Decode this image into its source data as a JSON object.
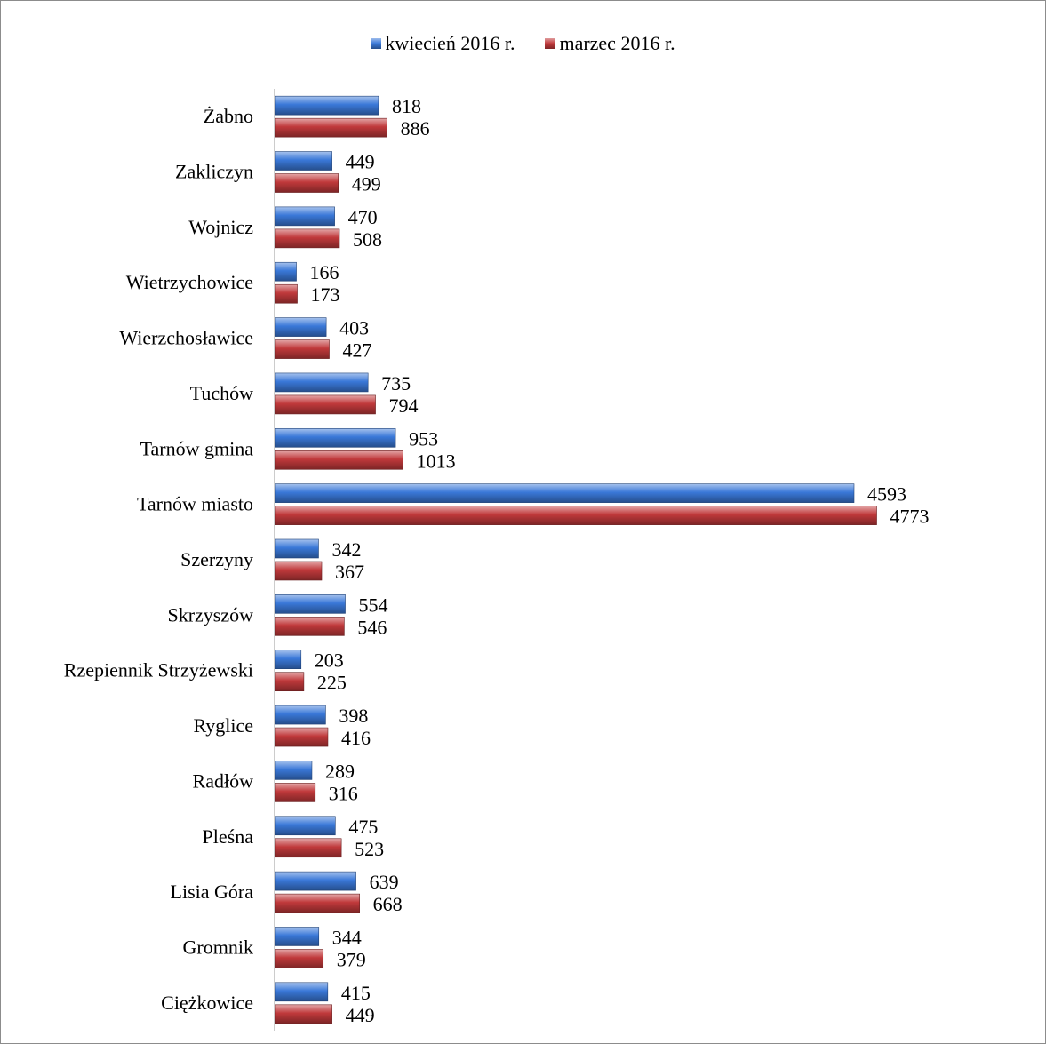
{
  "chart_data": {
    "type": "bar",
    "orientation": "horizontal",
    "categories": [
      "Żabno",
      "Zakliczyn",
      "Wojnicz",
      "Wietrzychowice",
      "Wierzchosławice",
      "Tuchów",
      "Tarnów gmina",
      "Tarnów miasto",
      "Szerzyny",
      "Skrzyszów",
      "Rzepiennik Strzyżewski",
      "Ryglice",
      "Radłów",
      "Pleśna",
      "Lisia Góra",
      "Gromnik",
      "Ciężkowice"
    ],
    "series": [
      {
        "name": "kwiecień 2016 r.",
        "color": "#3a78d8",
        "values": [
          818,
          449,
          470,
          166,
          403,
          735,
          953,
          4593,
          342,
          554,
          203,
          398,
          289,
          475,
          639,
          344,
          415
        ]
      },
      {
        "name": "marzec 2016 r.",
        "color": "#c0393b",
        "values": [
          886,
          499,
          508,
          173,
          427,
          794,
          1013,
          4773,
          367,
          546,
          225,
          416,
          316,
          523,
          668,
          379,
          449
        ]
      }
    ],
    "title": "",
    "xlabel": "",
    "ylabel": "",
    "xlim": [
      0,
      5500
    ],
    "grid": false,
    "data_labels": true,
    "legend_position": "top"
  }
}
